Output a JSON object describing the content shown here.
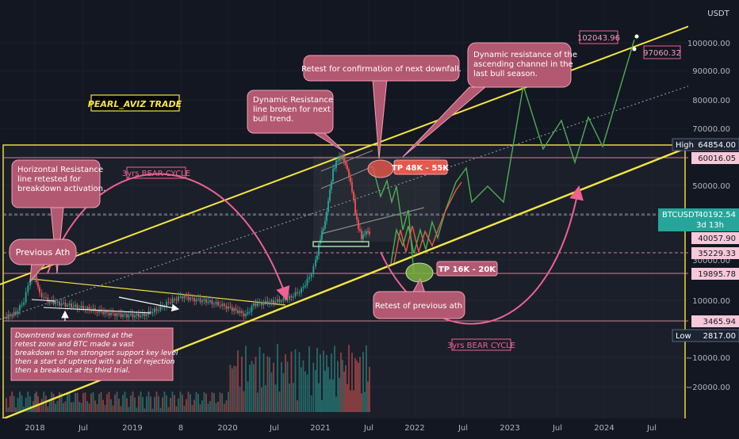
{
  "header": {
    "currency": "USDT"
  },
  "chart_data": {
    "type": "candlestick",
    "symbol": "BTCUSDT",
    "title": "PEARL_AVIZ TRADE",
    "y_scale": "log",
    "ylim": [
      -23000,
      112000
    ],
    "y_ticks": [
      {
        "value": 100000,
        "label": "100000.00"
      },
      {
        "value": 90000,
        "label": "90000.00"
      },
      {
        "value": 80000,
        "label": "80000.00"
      },
      {
        "value": 70000,
        "label": "70000.00"
      },
      {
        "value": 50000,
        "label": "50000.00"
      },
      {
        "value": 40000,
        "label": "40000.00"
      },
      {
        "value": 30000,
        "label": "30000.00"
      },
      {
        "value": 20000,
        "label": "20000.00"
      },
      {
        "value": 10000,
        "label": "10000.00"
      },
      {
        "value": -10000,
        "label": "−10000.00"
      },
      {
        "value": -20000,
        "label": "−20000.00"
      }
    ],
    "x_ticks": [
      "2018",
      "Jul",
      "2019",
      "8",
      "2020",
      "Jul",
      "2021",
      "Jul",
      "2022",
      "Jul",
      "2023",
      "Jul",
      "2024",
      "Jul"
    ],
    "price_markers": [
      {
        "label": "High",
        "value": "64854.00",
        "color": "#1c2433",
        "text": "#ffffff"
      },
      {
        "label": "",
        "value": "60016.05",
        "color": "#f8c8d8",
        "text": "#131722"
      },
      {
        "label": "BTCUSDT",
        "value": "40192.54",
        "sub": "3d 13h",
        "color": "#26a69a",
        "text": "#ffffff"
      },
      {
        "label": "",
        "value": "40057.90",
        "color": "#f8c8d8",
        "text": "#131722"
      },
      {
        "label": "",
        "value": "35229.33",
        "color": "#f8c8d8",
        "text": "#131722"
      },
      {
        "label": "",
        "value": "19895.78",
        "color": "#f8c8d8",
        "text": "#131722"
      },
      {
        "label": "",
        "value": "3465.94",
        "color": "#f8c8d8",
        "text": "#131722"
      },
      {
        "label": "Low",
        "value": "2817.00",
        "color": "#1c2433",
        "text": "#ffffff"
      }
    ],
    "projection_labels": {
      "top": "102043.96",
      "right": "97060.32"
    },
    "targets": [
      {
        "label": "TP 48K - 55K",
        "color": "#e8584a"
      },
      {
        "label": "TP 16K - 20K",
        "color": "#7cb342"
      }
    ],
    "cycles": [
      "3yrs BEAR CYCLE",
      "3yrs BEAR CYCLE"
    ],
    "annotations": [
      {
        "id": "horizontal",
        "text": "Horizontal Resistance line retested for breakdown activation."
      },
      {
        "id": "previous-ath",
        "text": "Previous Ath"
      },
      {
        "id": "dynamic-broken",
        "text": "Dynamic Resistance line broken for next bull trend."
      },
      {
        "id": "retest-downfall",
        "text": "Retest for confirmation of next downfall."
      },
      {
        "id": "dynamic-channel",
        "text": "Dynamic resistance of the ascending channel in the last bull season."
      },
      {
        "id": "retest-ath",
        "text": "Retest of previous ath"
      },
      {
        "id": "downtrend",
        "text": "Downtrend was confirmed at the retest zone and BTC made a vast breakdown to the strongest support key level then a start of uptrend  with a bit of rejection then a breakout at its third trial."
      }
    ],
    "colors": {
      "channel": "#f5e642",
      "annotation_bg": "#b35871",
      "annotation_border": "#f3a0b4",
      "projection_up": "#4caf50",
      "projection_down": "#e8584a",
      "candle_up": "#26a69a",
      "candle_down": "#ef5350"
    }
  }
}
